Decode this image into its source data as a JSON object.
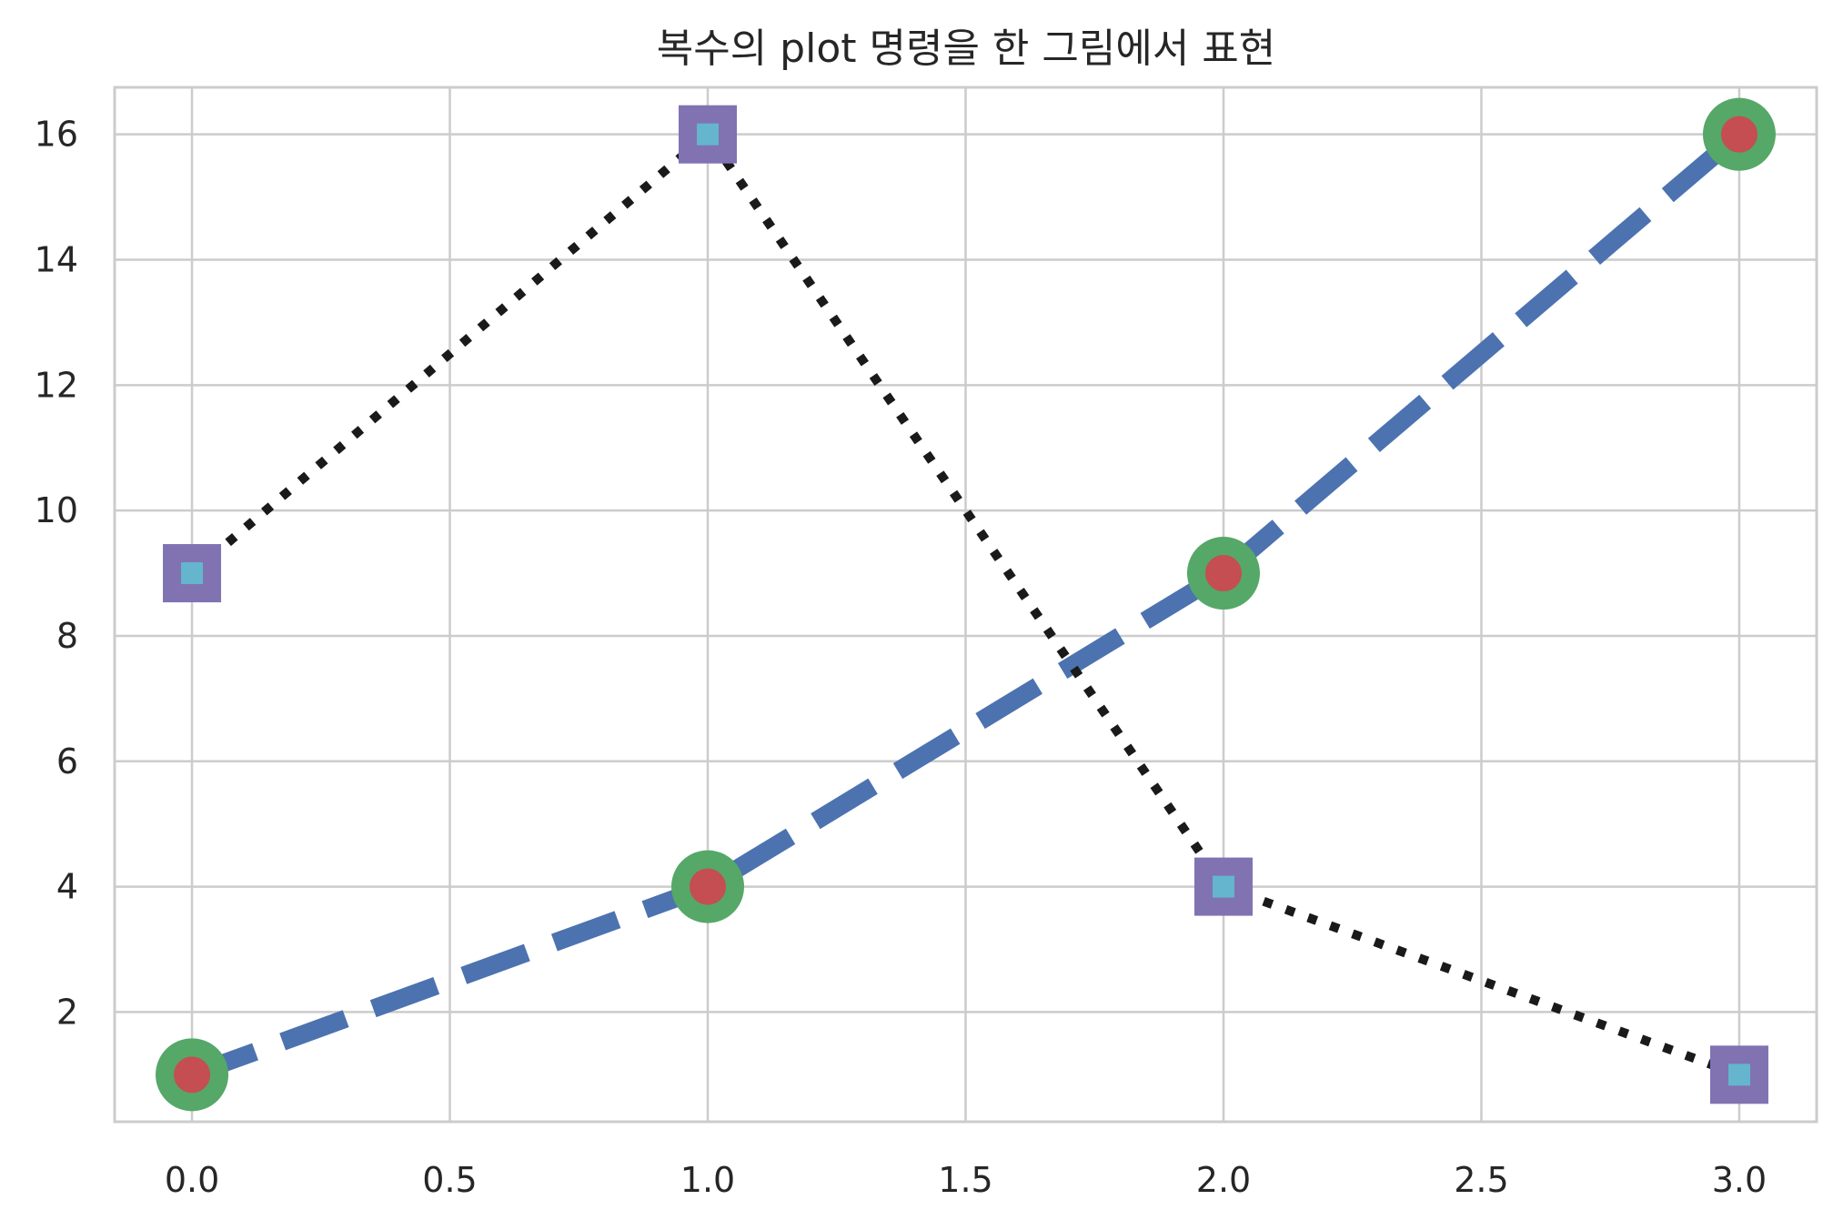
{
  "chart_data": {
    "type": "line",
    "title": "복수의 plot 명령을 한 그림에서 표현",
    "xlabel": "",
    "ylabel": "",
    "xlim": [
      -0.15,
      3.15
    ],
    "ylim": [
      0.25,
      16.75
    ],
    "xticks": [
      "0.0",
      "0.5",
      "1.0",
      "1.5",
      "2.0",
      "2.5",
      "3.0"
    ],
    "yticks": [
      "2",
      "4",
      "6",
      "8",
      "10",
      "12",
      "14",
      "16"
    ],
    "grid": true,
    "legend": "none",
    "series": [
      {
        "x": [
          0,
          1,
          2,
          3
        ],
        "y": [
          1,
          4,
          9,
          16
        ],
        "line_style": "dashed",
        "line_color": "#4c72b0",
        "marker": "circle",
        "marker_face": "#c44e52",
        "marker_edge": "#55a868"
      },
      {
        "x": [
          0,
          1,
          2,
          3
        ],
        "y": [
          9,
          16,
          4,
          1
        ],
        "line_style": "dotted",
        "line_color": "#1a1a1a",
        "marker": "square",
        "marker_face": "#64b5cd",
        "marker_edge": "#8172b2"
      }
    ]
  },
  "colors": {
    "grid": "#cccccc",
    "axes_frame": "#cccccc",
    "text": "#262626"
  }
}
